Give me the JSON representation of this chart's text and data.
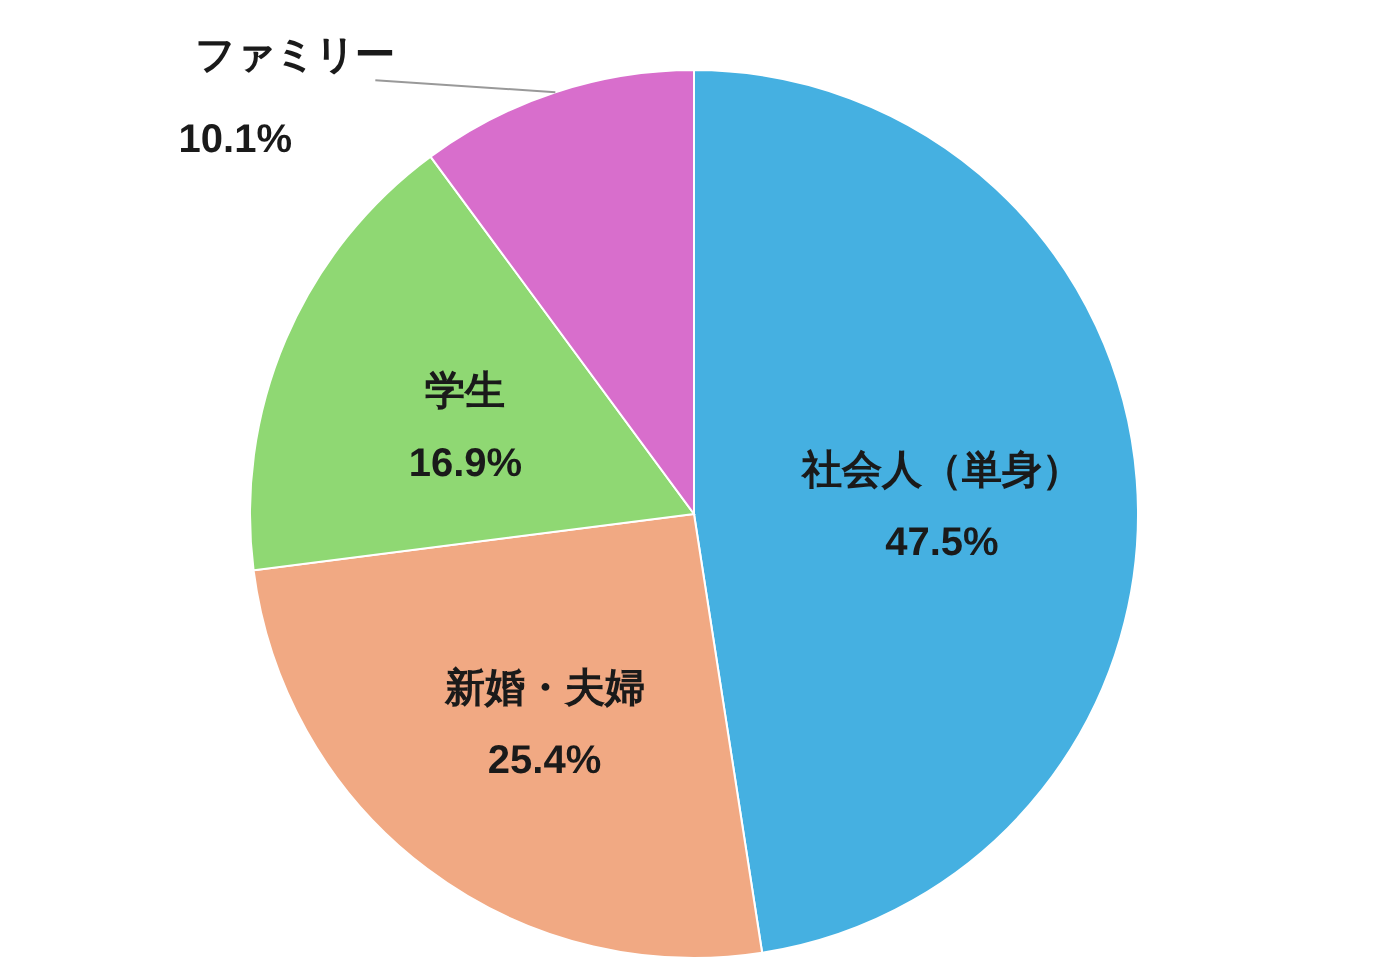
{
  "chart_data": {
    "type": "pie",
    "categories": [
      "社会人（単身）",
      "新婚・夫婦",
      "学生",
      "ファミリー"
    ],
    "values": [
      47.5,
      25.4,
      16.9,
      10.1
    ],
    "value_labels": [
      "47.5%",
      "25.4%",
      "16.9%",
      "10.1%"
    ],
    "colors": [
      "#45b0e1",
      "#f1a983",
      "#8fd873",
      "#d86ecc"
    ],
    "legend": false
  }
}
